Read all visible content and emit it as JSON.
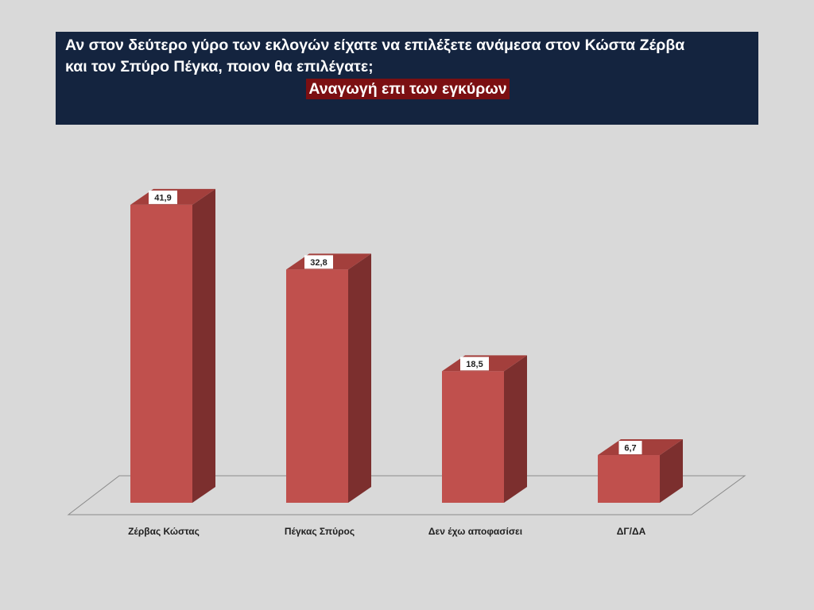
{
  "chart_data": {
    "type": "bar",
    "title": "Αν στον δεύτερο γύρο των εκλογών είχατε να επιλέξετε ανάμεσα στον Κώστα Ζέρβα\nκαι τον Σπύρο  Πέγκα, ποιον θα επιλέγατε;",
    "subtitle": "Αναγωγή επι των εγκύρων",
    "categories": [
      "Ζέρβας Κώστας",
      "Πέγκας Σπύρος",
      "Δεν έχω αποφασίσει",
      "ΔΓ/ΔΑ"
    ],
    "values": [
      41.9,
      32.8,
      18.5,
      6.7
    ],
    "value_labels": [
      "41,9",
      "32,8",
      "18,5",
      "6,7"
    ],
    "ylim": [
      0,
      42
    ],
    "grid": false,
    "legend": "none",
    "style": "3d-column",
    "colors": {
      "bar_front": "#c0504d",
      "bar_side": "#7c2f2e",
      "bar_top": "#a33f3c",
      "title_bg": "#14243f",
      "subtitle_bg": "#7b0f12"
    }
  }
}
